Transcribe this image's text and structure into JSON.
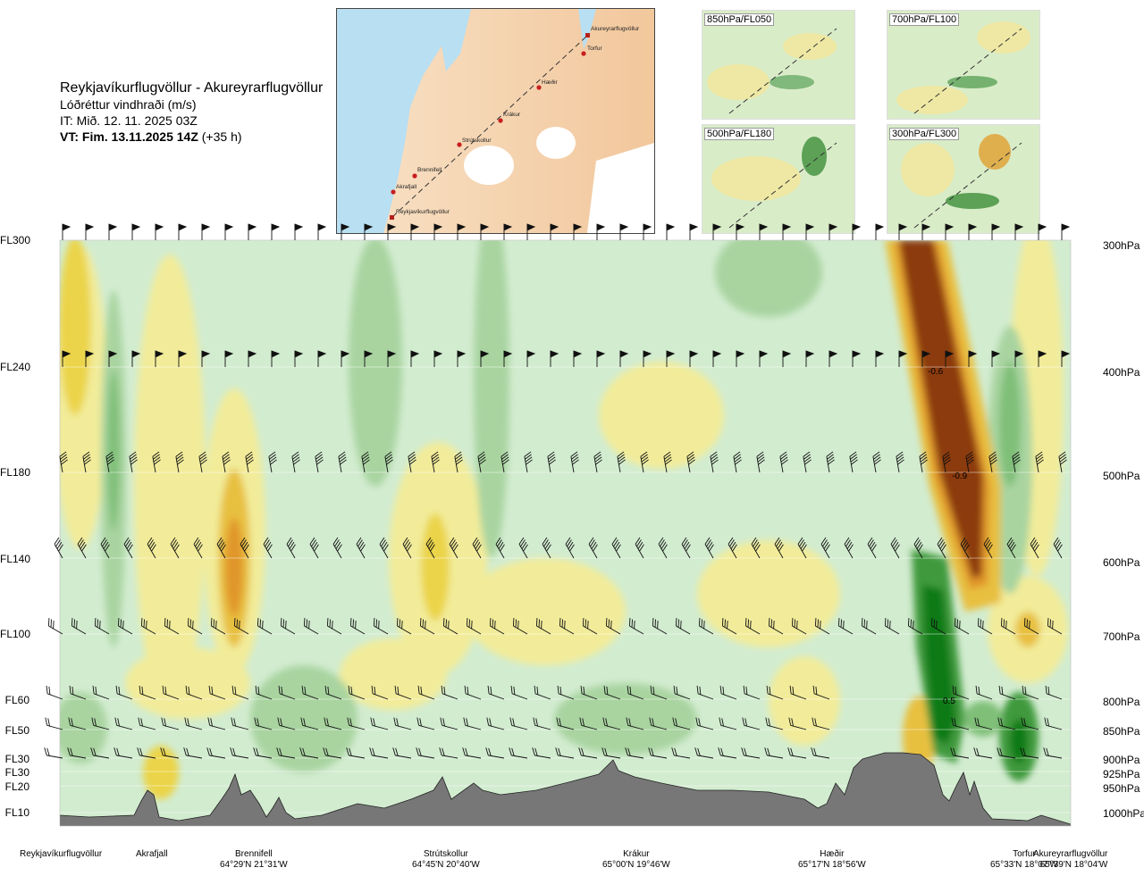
{
  "header": {
    "route": "Reykjavíkurflugvöllur - Akureyrarflugvöllur",
    "parameter": "Lóðréttur vindhraði (m/s)",
    "it": "IT: Mið. 12. 11. 2025 03Z",
    "vt_bold": "VT: Fim. 13.11.2025 14Z",
    "vt_rest": " (+35 h)"
  },
  "map": {
    "labels": [
      "Akureyrarflugvöllur",
      "Torfur",
      "Hæðir",
      "Krákur",
      "Strútskollur",
      "Brennifell",
      "Akrafjall",
      "Reykjavíkurflugvöllur"
    ]
  },
  "mini_maps": [
    {
      "label": "850hPa/FL050"
    },
    {
      "label": "700hPa/FL100"
    },
    {
      "label": "500hPa/FL180"
    },
    {
      "label": "300hPa/FL300"
    }
  ],
  "levels": [
    {
      "fl": "FL300",
      "hpa": "300hPa"
    },
    {
      "fl": "FL240",
      "hpa": "400hPa"
    },
    {
      "fl": "FL180",
      "hpa": "500hPa"
    },
    {
      "fl": "FL140",
      "hpa": "600hPa"
    },
    {
      "fl": "FL100",
      "hpa": "700hPa"
    },
    {
      "fl": "FL60",
      "hpa": "800hPa"
    },
    {
      "fl": "FL50",
      "hpa": "850hPa"
    },
    {
      "fl": "FL30",
      "hpa": "900hPa"
    },
    {
      "fl": "FL30",
      "hpa": "925hPa"
    },
    {
      "fl": "FL20",
      "hpa": "950hPa"
    },
    {
      "fl": "FL10",
      "hpa": "1000hPa"
    }
  ],
  "places": [
    {
      "name": "Reykjavíkurflugvöllur",
      "coord": ""
    },
    {
      "name": "Akrafjall",
      "coord": ""
    },
    {
      "name": "Brennifell",
      "coord": "64°29'N 21°31'W"
    },
    {
      "name": "Strútskollur",
      "coord": "64°45'N 20°40'W"
    },
    {
      "name": "Krákur",
      "coord": "65°00'N 19°46'W"
    },
    {
      "name": "Hæðir",
      "coord": "65°17'N 18°56'W"
    },
    {
      "name": "Torfur",
      "coord": "65°33'N 18°07'W"
    },
    {
      "name": "Akureyrarflugvöllur",
      "coord": "65°39'N 18°04'W"
    }
  ],
  "chart_data": {
    "type": "heatmap",
    "variable": "Lóðréttur vindhraði (m/s)",
    "y_axis_left": [
      "FL300",
      "FL240",
      "FL180",
      "FL140",
      "FL100",
      "FL60",
      "FL50",
      "FL30",
      "FL30",
      "FL20",
      "FL10"
    ],
    "y_axis_right": [
      "300hPa",
      "400hPa",
      "500hPa",
      "600hPa",
      "700hPa",
      "800hPa",
      "850hPa",
      "900hPa",
      "925hPa",
      "950hPa",
      "1000hPa"
    ],
    "x_axis": [
      "Reykjavíkurflugvöllur",
      "Akrafjall",
      "Brennifell",
      "Strútskollur",
      "Krákur",
      "Hæðir",
      "Torfur",
      "Akureyrarflugvöllur"
    ],
    "contour_labels": [
      {
        "text": "-0.6",
        "near": "Torfur",
        "level": "400hPa"
      },
      {
        "text": "-0.9",
        "near": "Torfur",
        "level": "500hPa"
      },
      {
        "text": "0.5",
        "near": "Torfur",
        "level": "800hPa"
      }
    ],
    "colors": {
      "strong_down": "#8b3a0f",
      "down": "#e8a020",
      "weak_down": "#f2ec9a",
      "neutral": "#d2ecd0",
      "weak_up": "#a9d4a0",
      "up": "#3f9a3c",
      "strong_up": "#0c7a12",
      "terrain": "#777777"
    }
  }
}
